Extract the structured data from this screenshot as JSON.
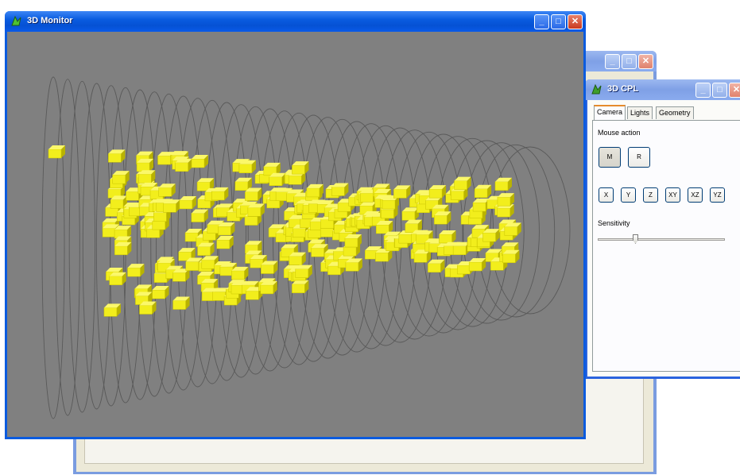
{
  "back_window": {
    "title": ""
  },
  "cpl_window": {
    "title": "3D CPL",
    "icon": "green-app-icon",
    "tabs": [
      {
        "label": "Camera",
        "active": true
      },
      {
        "label": "Lights",
        "active": false
      },
      {
        "label": "Geometry",
        "active": false
      }
    ],
    "mouse_action_label": "Mouse action",
    "mode_buttons": [
      "M",
      "R"
    ],
    "axis_buttons": [
      "X",
      "Y",
      "Z",
      "XY",
      "XZ",
      "YZ"
    ],
    "sensitivity_label": "Sensitivity"
  },
  "monitor_window": {
    "title": "3D Monitor",
    "icon": "green-app-icon"
  },
  "colors": {
    "titlebar_active": "#0a5ce0",
    "viewport_bg": "#808080",
    "cube_color": "#f2ee1c",
    "ring_color": "#5a5a5a"
  }
}
